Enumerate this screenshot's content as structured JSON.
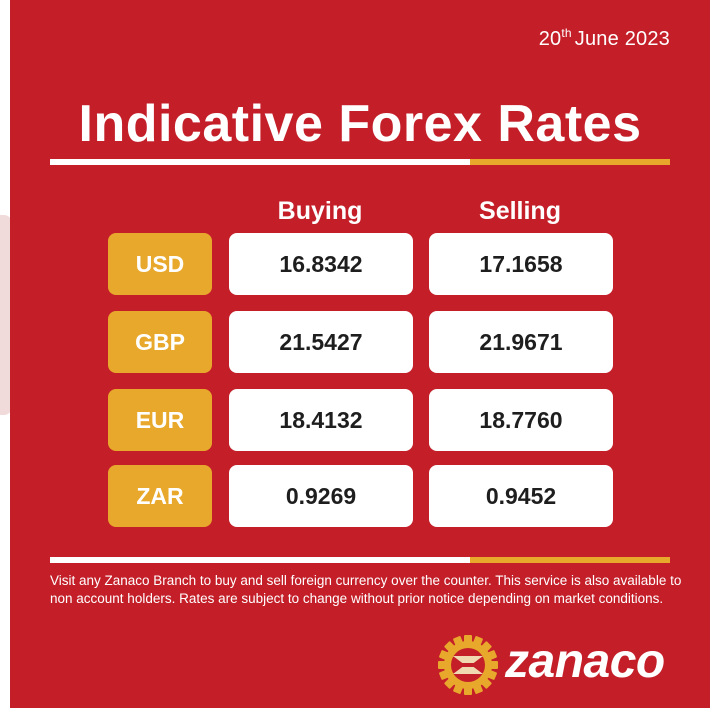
{
  "date": {
    "day": "20",
    "suffix": "th",
    "rest": "June 2023"
  },
  "title": "Indicative Forex Rates",
  "columns": {
    "buying": "Buying",
    "selling": "Selling"
  },
  "rates": [
    {
      "currency": "USD",
      "buying": "16.8342",
      "selling": "17.1658"
    },
    {
      "currency": "GBP",
      "buying": "21.5427",
      "selling": "21.9671"
    },
    {
      "currency": "EUR",
      "buying": "18.4132",
      "selling": "18.7760"
    },
    {
      "currency": "ZAR",
      "buying": "0.9269",
      "selling": "0.9452"
    }
  ],
  "footnote": "Visit any Zanaco Branch to buy and sell foreign currency over the counter. This service is also available to non account holders. Rates are subject to change without prior notice depending on market conditions.",
  "brand": {
    "name": "zanaco",
    "logo_icon": "gear-icon"
  },
  "colors": {
    "background": "#c41f29",
    "accent": "#e8a82b",
    "cell": "#ffffff",
    "text_dark": "#1e1e1e"
  }
}
